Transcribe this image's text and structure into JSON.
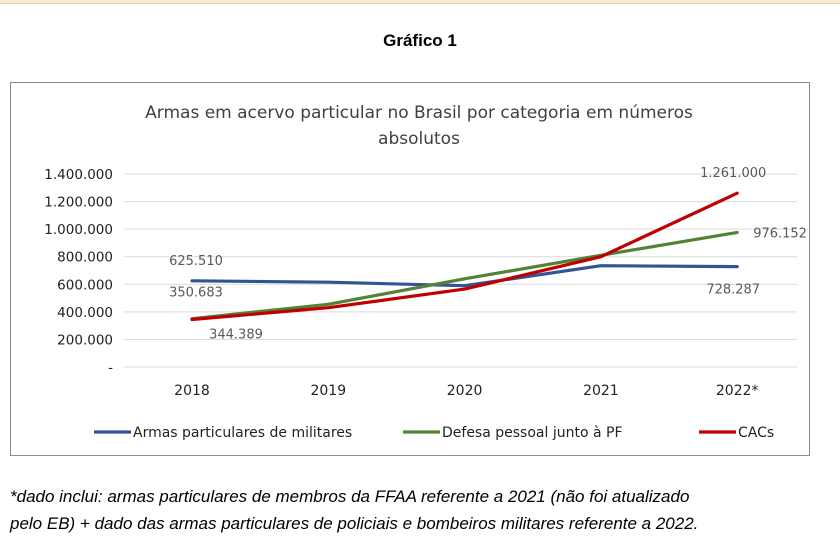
{
  "page": {
    "figure_title": "Gráfico 1",
    "footnote_line1": "*dado inclui: armas particulares de membros da FFAA referente a 2021 (não foi atualizado",
    "footnote_line2": "pelo EB) + dado das armas particulares de policiais e bombeiros militares referente a 2022."
  },
  "chart_data": {
    "type": "line",
    "title_line1": "Armas em acervo particular no Brasil por categoria em números",
    "title_line2": "absolutos",
    "xlabel": "",
    "ylabel": "",
    "categories": [
      "2018",
      "2019",
      "2020",
      "2021",
      "2022*"
    ],
    "ylim": [
      0,
      1400000
    ],
    "yticks": [
      0,
      200000,
      400000,
      600000,
      800000,
      1000000,
      1200000,
      1400000
    ],
    "ytick_labels": [
      "-",
      "200.000",
      "400.000",
      "600.000",
      "800.000",
      "1.000.000",
      "1.200.000",
      "1.400.000"
    ],
    "grid": true,
    "legend_position": "bottom",
    "series": [
      {
        "name": "Armas particulares de militares",
        "color": "#2f5597",
        "values": [
          625510,
          615000,
          590000,
          735000,
          728287
        ],
        "data_labels": [
          {
            "index": 0,
            "text": "625.510",
            "pos": "above"
          },
          {
            "index": 4,
            "text": "728.287",
            "pos": "below"
          }
        ]
      },
      {
        "name": "Defesa pessoal junto à PF",
        "color": "#548235",
        "values": [
          350683,
          455000,
          640000,
          810000,
          976152
        ],
        "data_labels": [
          {
            "index": 0,
            "text": "350.683",
            "pos": "above"
          },
          {
            "index": 4,
            "text": "976.152",
            "pos": "right"
          }
        ]
      },
      {
        "name": "CACs",
        "color": "#c00000",
        "values": [
          344389,
          430000,
          565000,
          800000,
          1261000
        ],
        "data_labels": [
          {
            "index": 0,
            "text": "344.389",
            "pos": "below"
          },
          {
            "index": 4,
            "text": "1.261.000",
            "pos": "above"
          }
        ]
      }
    ]
  }
}
